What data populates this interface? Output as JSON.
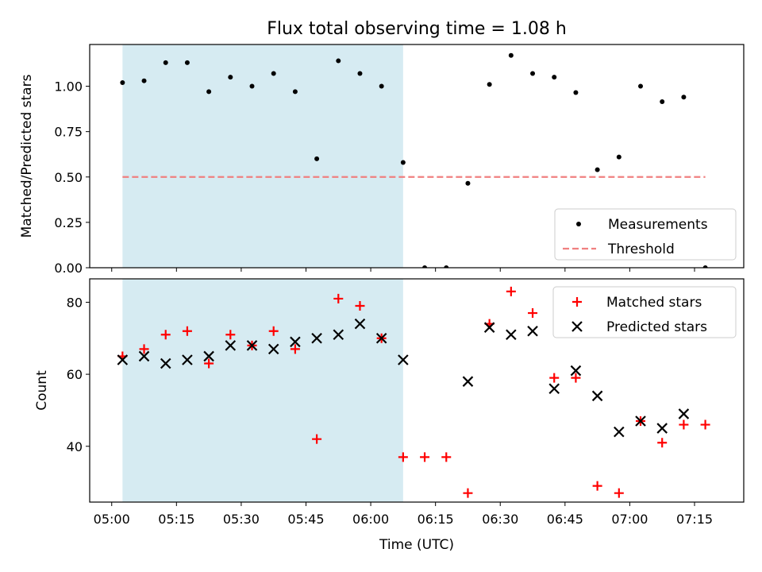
{
  "chart_data": {
    "title": "Flux total observing time = 1.08 h",
    "xlabel": "Time (UTC)",
    "x_ticks": [
      "05:00",
      "05:15",
      "05:30",
      "05:45",
      "06:00",
      "06:15",
      "06:30",
      "06:45",
      "07:00",
      "07:15"
    ],
    "x_tick_minutes": [
      0,
      15,
      30,
      45,
      60,
      75,
      90,
      105,
      120,
      135
    ],
    "xlim_minutes_after_0500": [
      -5.1,
      146.4
    ],
    "shaded_interval_minutes": [
      2.5,
      67.5
    ],
    "shade_color": "#add8e6",
    "panels": [
      {
        "type": "scatter",
        "ylabel": "Matched/Predicted stars",
        "ylim": [
          0.0,
          1.23
        ],
        "y_ticks": [
          "0.00",
          "0.25",
          "0.50",
          "0.75",
          "1.00"
        ],
        "y_tick_values": [
          0.0,
          0.25,
          0.5,
          0.75,
          1.0
        ],
        "legend_position": "lower-right",
        "series": [
          {
            "name": "Measurements",
            "marker": "dot",
            "color": "#000000",
            "x": [
              2.5,
              7.5,
              12.5,
              17.5,
              22.5,
              27.5,
              32.5,
              37.5,
              42.5,
              47.5,
              52.5,
              57.5,
              62.5,
              67.5,
              72.5,
              77.5,
              82.5,
              87.5,
              92.5,
              97.5,
              102.5,
              107.5,
              112.5,
              117.5,
              122.5,
              127.5,
              132.5,
              137.5
            ],
            "y": [
              1.02,
              1.03,
              1.13,
              1.13,
              0.97,
              1.05,
              1.0,
              1.07,
              0.97,
              0.6,
              1.14,
              1.07,
              1.0,
              0.58,
              0.0,
              0.0,
              0.465,
              1.01,
              1.17,
              1.07,
              1.05,
              0.965,
              0.54,
              0.61,
              1.0,
              0.915,
              0.94,
              0.0
            ]
          },
          {
            "name": "Threshold",
            "marker": "dashed-line",
            "color": "#f08080",
            "x": [
              2.5,
              137.5
            ],
            "y": [
              0.5,
              0.5
            ]
          }
        ]
      },
      {
        "type": "scatter",
        "ylabel": "Count",
        "ylim": [
          24.5,
          86.5
        ],
        "y_ticks": [
          "40",
          "60",
          "80"
        ],
        "y_tick_values": [
          40,
          60,
          80
        ],
        "legend_position": "upper-right",
        "series": [
          {
            "name": "Matched stars",
            "marker": "plus",
            "color": "#ff0000",
            "x": [
              2.5,
              7.5,
              12.5,
              17.5,
              22.5,
              27.5,
              32.5,
              37.5,
              42.5,
              47.5,
              52.5,
              57.5,
              62.5,
              67.5,
              72.5,
              77.5,
              82.5,
              87.5,
              92.5,
              97.5,
              102.5,
              107.5,
              112.5,
              117.5,
              122.5,
              127.5,
              132.5,
              137.5
            ],
            "y": [
              65,
              67,
              71,
              72,
              63,
              71,
              68,
              72,
              67,
              42,
              81,
              79,
              70,
              37,
              37,
              37,
              27,
              74,
              83,
              77,
              59,
              59,
              29,
              27,
              47,
              41,
              46,
              46
            ]
          },
          {
            "name": "Predicted stars",
            "marker": "x",
            "color": "#000000",
            "x": [
              2.5,
              7.5,
              12.5,
              17.5,
              22.5,
              27.5,
              32.5,
              37.5,
              42.5,
              47.5,
              52.5,
              57.5,
              62.5,
              67.5,
              82.5,
              87.5,
              92.5,
              97.5,
              102.5,
              107.5,
              112.5,
              117.5,
              122.5,
              127.5,
              132.5
            ],
            "y": [
              64,
              65,
              63,
              64,
              65,
              68,
              68,
              67,
              69,
              70,
              71,
              74,
              70,
              64,
              58,
              73,
              71,
              72,
              56,
              61,
              54,
              44,
              47,
              45,
              49
            ]
          }
        ]
      }
    ]
  }
}
